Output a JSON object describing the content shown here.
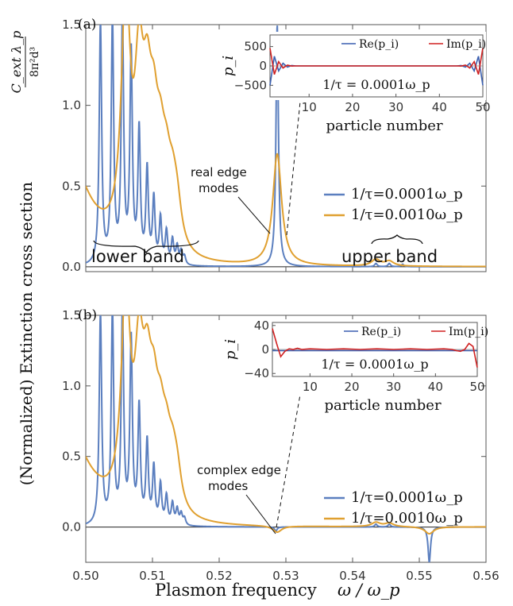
{
  "labels": {
    "ylabel": "(Normalized) Extinction cross section",
    "ylabel_frac_num": "C_ext λ_p",
    "ylabel_frac_den": "8π²d³",
    "xlabel": "Plasmon frequency",
    "xlabel_symbol": "ω / ω_p"
  },
  "chart_data": [
    {
      "type": "line",
      "panel_label": "(a)",
      "xlim": [
        0.5,
        0.56
      ],
      "ylim": [
        -0.03,
        1.5
      ],
      "x_ticks": [
        "0.50",
        "0.51",
        "0.52",
        "0.53",
        "0.54",
        "0.55",
        "0.56"
      ],
      "y_ticks": [
        "0.0",
        "0.5",
        "1.0",
        "1.5"
      ],
      "series": [
        {
          "name": "1/τ=0.0001ω_p",
          "color": "#5b7fbf",
          "peaks": [
            [
              0.5022,
              1.5
            ],
            [
              0.504,
              1.5
            ],
            [
              0.5055,
              1.5
            ],
            [
              0.5068,
              1.3
            ],
            [
              0.508,
              0.82
            ],
            [
              0.5092,
              0.58
            ],
            [
              0.5102,
              0.4
            ],
            [
              0.5112,
              0.28
            ],
            [
              0.5121,
              0.2
            ],
            [
              0.513,
              0.15
            ],
            [
              0.5137,
              0.11
            ],
            [
              0.5143,
              0.08
            ],
            [
              0.5148,
              0.05
            ],
            [
              0.5287,
              1.5
            ],
            [
              0.5435,
              0.02
            ],
            [
              0.5455,
              0.02
            ],
            [
              0.5475,
              0.015
            ]
          ]
        },
        {
          "name": "1/τ=0.0010ω_p",
          "color": "#e0a030",
          "peaks": [
            [
              0.506,
              1.5
            ],
            [
              0.508,
              0.95
            ],
            [
              0.5092,
              0.7
            ],
            [
              0.5102,
              0.55
            ],
            [
              0.5112,
              0.42
            ],
            [
              0.5121,
              0.33
            ],
            [
              0.513,
              0.26
            ],
            [
              0.5137,
              0.22
            ],
            [
              0.5287,
              0.69
            ],
            [
              0.5435,
              0.04
            ],
            [
              0.5455,
              0.03
            ]
          ]
        }
      ],
      "annotations": [
        "real edge modes",
        "lower band",
        "upper band"
      ],
      "inset": {
        "ylabel": "p_i",
        "xlabel": "particle number",
        "x_ticks": [
          "10",
          "20",
          "30",
          "40",
          "50"
        ],
        "y_ticks": [
          "500",
          "0",
          "−500"
        ],
        "ylim": [
          -800,
          800
        ],
        "legend": [
          "Re(p_i)",
          "Im(p_i)"
        ],
        "note": "1/τ = 0.0001ω_p",
        "series": [
          {
            "name": "Re(p_i)",
            "color": "#3a5fb0",
            "values": [
              [
                1,
                -500
              ],
              [
                2,
                250
              ],
              [
                3,
                -130
              ],
              [
                4,
                70
              ],
              [
                5,
                -30
              ],
              [
                6,
                10
              ],
              [
                7,
                0
              ],
              [
                44,
                0
              ],
              [
                45,
                10
              ],
              [
                46,
                -30
              ],
              [
                47,
                70
              ],
              [
                48,
                -130
              ],
              [
                49,
                250
              ],
              [
                50,
                -500
              ]
            ]
          },
          {
            "name": "Im(p_i)",
            "color": "#d02020",
            "values": [
              [
                1,
                460
              ],
              [
                2,
                -220
              ],
              [
                3,
                110
              ],
              [
                4,
                -55
              ],
              [
                5,
                20
              ],
              [
                6,
                -5
              ],
              [
                7,
                0
              ],
              [
                44,
                0
              ],
              [
                45,
                -5
              ],
              [
                46,
                20
              ],
              [
                47,
                -55
              ],
              [
                48,
                110
              ],
              [
                49,
                -220
              ],
              [
                50,
                460
              ]
            ]
          }
        ]
      }
    },
    {
      "type": "line",
      "panel_label": "(b)",
      "xlim": [
        0.5,
        0.56
      ],
      "ylim": [
        -0.25,
        1.5
      ],
      "x_ticks": [
        "0.50",
        "0.51",
        "0.52",
        "0.53",
        "0.54",
        "0.55",
        "0.56"
      ],
      "y_ticks": [
        "0.0",
        "0.5",
        "1.0",
        "1.5"
      ],
      "series": [
        {
          "name": "1/τ=0.0001ω_p",
          "color": "#5b7fbf",
          "peaks": [
            [
              0.5022,
              1.5
            ],
            [
              0.504,
              1.5
            ],
            [
              0.5055,
              1.5
            ],
            [
              0.5068,
              1.3
            ],
            [
              0.508,
              0.82
            ],
            [
              0.5092,
              0.58
            ],
            [
              0.5102,
              0.4
            ],
            [
              0.5112,
              0.28
            ],
            [
              0.5121,
              0.2
            ],
            [
              0.513,
              0.15
            ],
            [
              0.5137,
              0.11
            ],
            [
              0.5143,
              0.08
            ],
            [
              0.5148,
              0.05
            ],
            [
              0.5285,
              -0.03
            ],
            [
              0.5435,
              0.02
            ],
            [
              0.5455,
              0.02
            ],
            [
              0.5515,
              -0.25
            ]
          ]
        },
        {
          "name": "1/τ=0.0010ω_p",
          "color": "#e0a030",
          "peaks": [
            [
              0.506,
              1.5
            ],
            [
              0.508,
              0.95
            ],
            [
              0.5092,
              0.7
            ],
            [
              0.5102,
              0.55
            ],
            [
              0.5112,
              0.42
            ],
            [
              0.5121,
              0.33
            ],
            [
              0.513,
              0.26
            ],
            [
              0.5137,
              0.22
            ],
            [
              0.5287,
              -0.045
            ],
            [
              0.5435,
              0.03
            ],
            [
              0.5455,
              0.025
            ],
            [
              0.5515,
              -0.05
            ]
          ]
        }
      ],
      "annotations": [
        "complex edge modes"
      ],
      "inset": {
        "ylabel": "p_i",
        "xlabel": "particle number",
        "x_ticks": [
          "10",
          "20",
          "30",
          "40",
          "50"
        ],
        "y_ticks": [
          "40",
          "0",
          "−40"
        ],
        "ylim": [
          -45,
          45
        ],
        "legend": [
          "Re(p_i)",
          "Im(p_i)"
        ],
        "note": "1/τ = 0.0001ω_p",
        "series": [
          {
            "name": "Re(p_i)",
            "color": "#3a5fb0",
            "values": [
              [
                1,
                -2
              ],
              [
                50,
                -2
              ]
            ]
          },
          {
            "name": "Im(p_i)",
            "color": "#d02020",
            "values": [
              [
                1,
                35
              ],
              [
                2,
                10
              ],
              [
                3,
                -12
              ],
              [
                4,
                -3
              ],
              [
                5,
                1
              ],
              [
                6,
                0
              ],
              [
                7,
                2
              ],
              [
                8,
                0
              ],
              [
                10,
                1
              ],
              [
                14,
                0
              ],
              [
                18,
                1
              ],
              [
                22,
                0
              ],
              [
                26,
                1
              ],
              [
                30,
                0
              ],
              [
                34,
                1
              ],
              [
                38,
                0
              ],
              [
                42,
                1
              ],
              [
                44,
                0
              ],
              [
                45,
                -2
              ],
              [
                46,
                -3
              ],
              [
                47,
                0
              ],
              [
                48,
                10
              ],
              [
                49,
                5
              ],
              [
                50,
                -30
              ]
            ]
          }
        ]
      }
    }
  ]
}
